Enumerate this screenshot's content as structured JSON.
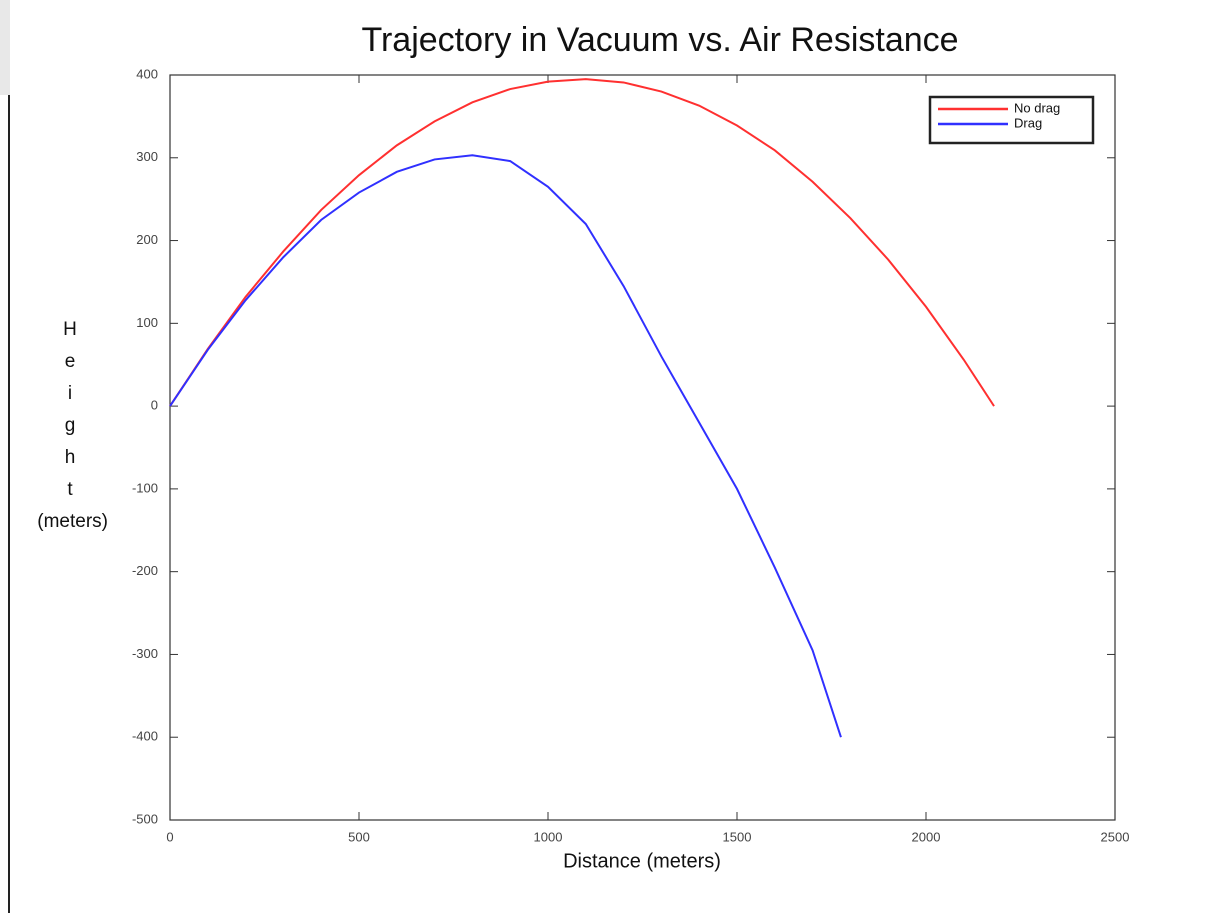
{
  "chart_data": {
    "type": "line",
    "title": "Trajectory in Vacuum vs. Air Resistance",
    "xlabel": "Distance (meters)",
    "ylabel": "Height (meters)",
    "xlim": [
      0,
      2500
    ],
    "xticks": [
      0,
      500,
      1000,
      1500,
      2000,
      2500
    ],
    "ylim": [
      -500,
      400
    ],
    "yticks": [
      -500,
      -400,
      -300,
      -200,
      -100,
      0,
      100,
      200,
      300,
      400
    ],
    "legend_position": "upper right",
    "series": [
      {
        "name": "No drag",
        "color": "#ff3030",
        "x": [
          0,
          100,
          200,
          300,
          400,
          500,
          600,
          700,
          800,
          900,
          1000,
          1100,
          1200,
          1300,
          1400,
          1500,
          1600,
          1700,
          1800,
          1900,
          2000,
          2100,
          2180
        ],
        "values": [
          0,
          69,
          132,
          187,
          237,
          279,
          315,
          344,
          367,
          383,
          392,
          395,
          391,
          380,
          363,
          339,
          309,
          271,
          227,
          177,
          120,
          56,
          0
        ]
      },
      {
        "name": "Drag",
        "color": "#3030ff",
        "x": [
          0,
          100,
          200,
          300,
          400,
          500,
          600,
          700,
          800,
          900,
          1000,
          1100,
          1200,
          1300,
          1400,
          1500,
          1600,
          1700,
          1775
        ],
        "values": [
          0,
          68,
          128,
          180,
          225,
          258,
          283,
          298,
          303,
          296,
          265,
          220,
          145,
          60,
          -20,
          -100,
          -195,
          -295,
          -400
        ]
      }
    ]
  }
}
